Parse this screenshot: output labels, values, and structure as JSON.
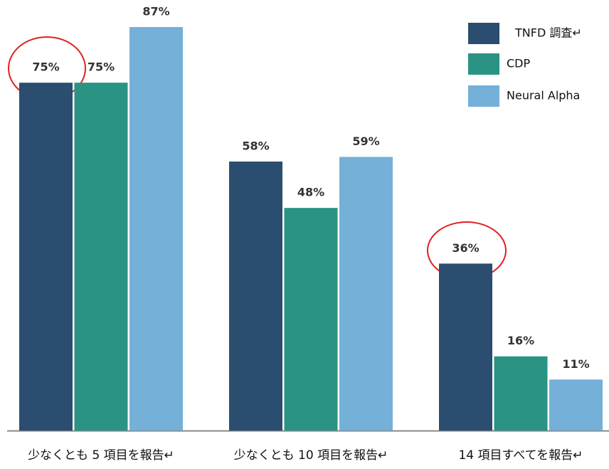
{
  "chart_data": {
    "type": "bar",
    "categories": [
      "少なくとも 5 項目を報告↵",
      "少なくとも 10 項目を報告↵",
      "14 項目すべてを報告↵"
    ],
    "series": [
      {
        "name": "TNFD 調査↵",
        "color": "#2b4d6f",
        "values": [
          75,
          58,
          36
        ],
        "value_labels": [
          "75%",
          "58%",
          "36%"
        ]
      },
      {
        "name": "CDP",
        "color": "#2a9383",
        "values": [
          75,
          48,
          16
        ],
        "value_labels": [
          "75%",
          "48%",
          "16%"
        ]
      },
      {
        "name": "Neural Alpha",
        "color": "#74b0d8",
        "values": [
          87,
          59,
          11
        ],
        "value_labels": [
          "87%",
          "59%",
          "11%"
        ]
      }
    ],
    "legend": "top-right"
  }
}
